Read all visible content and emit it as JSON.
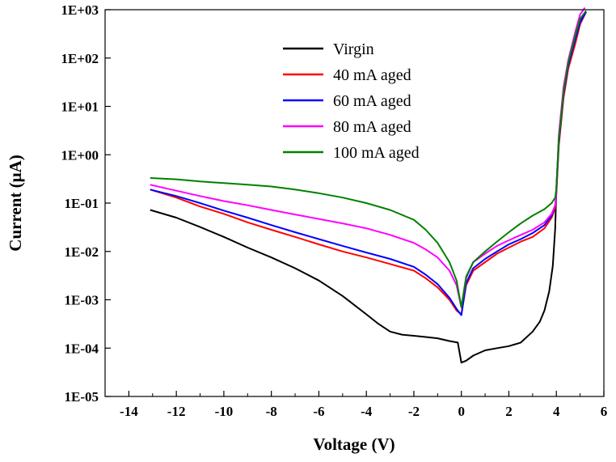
{
  "chart_data": {
    "type": "line",
    "xlabel": "Voltage (V)",
    "ylabel": "Current (μA)",
    "x_scale": "linear",
    "y_scale": "log",
    "xlim": [
      -15,
      6
    ],
    "ylim": [
      1e-05,
      1000
    ],
    "x_ticks": [
      -14,
      -12,
      -10,
      -8,
      -6,
      -4,
      -2,
      0,
      2,
      4,
      6
    ],
    "x_tick_labels": [
      "-14",
      "-12",
      "-10",
      "-8",
      "-6",
      "-4",
      "-2",
      "0",
      "2",
      "4",
      "6"
    ],
    "y_ticks": [
      1e-05,
      0.0001,
      0.001,
      0.01,
      0.1,
      1,
      10,
      100,
      1000
    ],
    "y_tick_labels": [
      "1E-05",
      "1E-04",
      "1E-03",
      "1E-02",
      "1E-01",
      "1E+00",
      "1E+01",
      "1E+02",
      "1E+03"
    ],
    "grid": false,
    "legend_position": "top-center",
    "series": [
      {
        "name": "Virgin",
        "color": "#000000",
        "x": [
          -13.1,
          -12,
          -11,
          -10,
          -9,
          -8,
          -7,
          -6,
          -5,
          -4,
          -3.5,
          -3,
          -2.5,
          -2,
          -1.5,
          -1,
          -0.5,
          -0.15,
          0,
          0.2,
          0.5,
          1,
          1.5,
          2,
          2.5,
          3,
          3.3,
          3.5,
          3.7,
          3.85,
          3.95,
          4.0,
          4.1,
          4.3,
          4.5,
          4.8,
          5.0,
          5.25
        ],
        "y": [
          0.072,
          0.05,
          0.032,
          0.02,
          0.012,
          0.0075,
          0.0045,
          0.0025,
          0.0012,
          0.0005,
          0.00032,
          0.00022,
          0.00019,
          0.00018,
          0.00017,
          0.00016,
          0.00014,
          0.00013,
          5e-05,
          5.5e-05,
          7e-05,
          9e-05,
          0.0001,
          0.00011,
          0.00013,
          0.00022,
          0.00035,
          0.0006,
          0.0015,
          0.005,
          0.03,
          0.2,
          2,
          20,
          80,
          300,
          600,
          900
        ]
      },
      {
        "name": "40 mA aged",
        "color": "#ff0000",
        "x": [
          -13.1,
          -12,
          -11,
          -10,
          -9,
          -8,
          -7,
          -6,
          -5,
          -4,
          -3,
          -2,
          -1.5,
          -1,
          -0.5,
          -0.2,
          0,
          0.2,
          0.5,
          1,
          1.5,
          2,
          2.5,
          3,
          3.5,
          3.8,
          3.95,
          4.0,
          4.1,
          4.3,
          4.5,
          4.8,
          5.0,
          5.25
        ],
        "y": [
          0.19,
          0.13,
          0.085,
          0.06,
          0.04,
          0.028,
          0.02,
          0.014,
          0.01,
          0.0075,
          0.0055,
          0.004,
          0.0028,
          0.0018,
          0.001,
          0.0006,
          0.0005,
          0.002,
          0.004,
          0.006,
          0.009,
          0.012,
          0.016,
          0.02,
          0.03,
          0.05,
          0.08,
          0.15,
          1.5,
          15,
          60,
          200,
          500,
          900
        ]
      },
      {
        "name": "60 mA aged",
        "color": "#0000ff",
        "x": [
          -13.1,
          -12,
          -11,
          -10,
          -9,
          -8,
          -7,
          -6,
          -5,
          -4,
          -3,
          -2,
          -1.5,
          -1,
          -0.5,
          -0.2,
          0,
          0.2,
          0.5,
          1,
          1.5,
          2,
          2.5,
          3,
          3.5,
          3.8,
          3.95,
          4.0,
          4.1,
          4.3,
          4.5,
          4.8,
          5.0,
          5.25
        ],
        "y": [
          0.19,
          0.14,
          0.1,
          0.07,
          0.05,
          0.035,
          0.025,
          0.018,
          0.013,
          0.0095,
          0.007,
          0.0048,
          0.0033,
          0.0021,
          0.0011,
          0.00065,
          0.00048,
          0.0022,
          0.0045,
          0.007,
          0.01,
          0.014,
          0.018,
          0.024,
          0.035,
          0.055,
          0.09,
          0.17,
          1.8,
          18,
          70,
          250,
          550,
          900
        ]
      },
      {
        "name": "80 mA aged",
        "color": "#ff00ff",
        "x": [
          -13.1,
          -12,
          -11,
          -10,
          -9,
          -8,
          -7,
          -6,
          -5,
          -4,
          -3,
          -2,
          -1.5,
          -1,
          -0.5,
          -0.2,
          0,
          0.2,
          0.5,
          1,
          1.5,
          2,
          2.5,
          3,
          3.5,
          3.8,
          3.95,
          4.0,
          4.1,
          4.3,
          4.5,
          4.8,
          5.0,
          5.2
        ],
        "y": [
          0.24,
          0.18,
          0.14,
          0.11,
          0.09,
          0.072,
          0.058,
          0.047,
          0.038,
          0.03,
          0.022,
          0.015,
          0.011,
          0.0075,
          0.004,
          0.002,
          0.0007,
          0.0028,
          0.006,
          0.009,
          0.013,
          0.017,
          0.022,
          0.028,
          0.04,
          0.06,
          0.09,
          0.18,
          2.5,
          25,
          90,
          350,
          800,
          1100
        ]
      },
      {
        "name": "100 mA aged",
        "color": "#008000",
        "x": [
          -13.1,
          -12,
          -11,
          -10,
          -9,
          -8,
          -7,
          -6,
          -5,
          -4,
          -3,
          -2,
          -1.5,
          -1,
          -0.5,
          -0.2,
          0,
          0.2,
          0.5,
          1,
          1.5,
          2,
          2.5,
          3,
          3.5,
          3.8,
          3.95,
          4.0,
          4.1,
          4.3,
          4.5,
          4.8,
          5.0,
          5.25
        ],
        "y": [
          0.33,
          0.31,
          0.28,
          0.26,
          0.24,
          0.22,
          0.19,
          0.16,
          0.13,
          0.1,
          0.072,
          0.045,
          0.028,
          0.015,
          0.006,
          0.0025,
          0.0007,
          0.003,
          0.006,
          0.01,
          0.016,
          0.025,
          0.038,
          0.055,
          0.075,
          0.1,
          0.13,
          0.2,
          2,
          20,
          80,
          300,
          650,
          950
        ]
      }
    ]
  }
}
